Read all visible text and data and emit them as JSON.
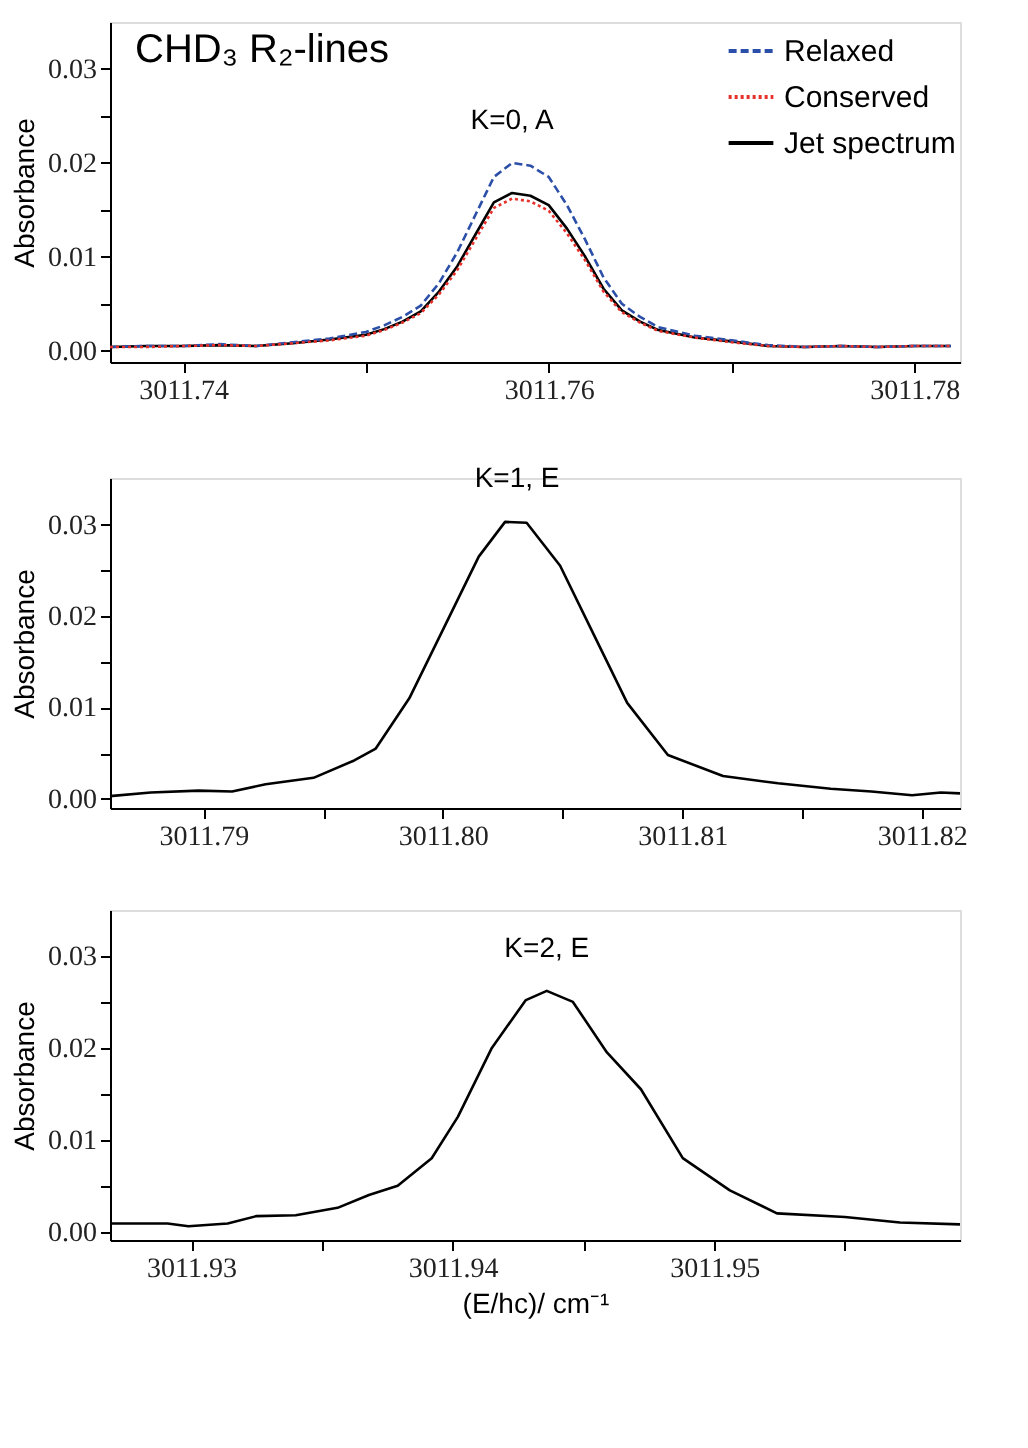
{
  "chart_data": [
    {
      "type": "line",
      "title": "CHD₃  R₂-lines",
      "ylabel": "Absorbance",
      "legend": "top right",
      "grid": false,
      "marker": "none",
      "annotations": [
        {
          "text": "K=0, A",
          "x": 3011.758,
          "y": 0.02
        }
      ],
      "xlim": [
        3011.736,
        3011.7825
      ],
      "ylim": [
        -0.0012,
        0.035
      ],
      "xticks": [
        {
          "value": 3011.74,
          "label": "3011.74"
        },
        {
          "value": 3011.75,
          "label": null
        },
        {
          "value": 3011.76,
          "label": "3011.76"
        },
        {
          "value": 3011.77,
          "label": null
        },
        {
          "value": 3011.78,
          "label": "3011.78"
        }
      ],
      "yticks": [
        {
          "value": 0,
          "label": "0.00"
        },
        {
          "value": 0.005,
          "label": null
        },
        {
          "value": 0.01,
          "label": "0.01"
        },
        {
          "value": 0.015,
          "label": null
        },
        {
          "value": 0.02,
          "label": "0.02"
        },
        {
          "value": 0.025,
          "label": null
        },
        {
          "value": 0.03,
          "label": "0.03"
        }
      ],
      "x": [
        3011.736,
        3011.738,
        3011.74,
        3011.742,
        3011.744,
        3011.746,
        3011.748,
        3011.75,
        3011.751,
        3011.752,
        3011.753,
        3011.754,
        3011.755,
        3011.756,
        3011.757,
        3011.758,
        3011.759,
        3011.76,
        3011.761,
        3011.762,
        3011.763,
        3011.764,
        3011.765,
        3011.766,
        3011.768,
        3011.77,
        3011.772,
        3011.774,
        3011.776,
        3011.778,
        3011.78,
        3011.782
      ],
      "series": [
        {
          "name": "Relaxed",
          "color": "#2b4fa8",
          "line_style": "dashed",
          "values": [
            0.0004,
            0.0005,
            0.0005,
            0.0007,
            0.0005,
            0.0009,
            0.0013,
            0.002,
            0.0027,
            0.0036,
            0.0048,
            0.0072,
            0.0105,
            0.0145,
            0.0185,
            0.02,
            0.0197,
            0.0185,
            0.0155,
            0.0118,
            0.0078,
            0.005,
            0.0036,
            0.0025,
            0.0016,
            0.0011,
            0.0006,
            0.0004,
            0.0005,
            0.0004,
            0.0005,
            0.0005
          ]
        },
        {
          "name": "Conserved",
          "color": "#e8302a",
          "line_style": "dotted",
          "values": [
            0.0004,
            0.0004,
            0.0005,
            0.0006,
            0.0005,
            0.0008,
            0.0011,
            0.0016,
            0.0022,
            0.003,
            0.004,
            0.006,
            0.0086,
            0.0119,
            0.0152,
            0.0162,
            0.0159,
            0.0149,
            0.0125,
            0.0096,
            0.0063,
            0.0041,
            0.003,
            0.0021,
            0.0014,
            0.0009,
            0.0005,
            0.0004,
            0.0005,
            0.0004,
            0.0005,
            0.0005
          ]
        },
        {
          "name": "Jet spectrum",
          "color": "#000000",
          "line_style": "solid",
          "values": [
            0.0004,
            0.0005,
            0.0005,
            0.0006,
            0.0005,
            0.0008,
            0.0012,
            0.0017,
            0.0023,
            0.0031,
            0.0042,
            0.0063,
            0.009,
            0.0124,
            0.0158,
            0.0168,
            0.0165,
            0.0155,
            0.013,
            0.01,
            0.0066,
            0.0043,
            0.0031,
            0.0022,
            0.0014,
            0.001,
            0.0005,
            0.0004,
            0.0005,
            0.0004,
            0.0005,
            0.0005
          ]
        }
      ]
    },
    {
      "type": "line",
      "ylabel": "Absorbance",
      "grid": false,
      "marker": "none",
      "annotations": [
        {
          "text": "K=1, E",
          "x": 3011.8031,
          "y": 0.0304
        }
      ],
      "xlim": [
        3011.7861,
        3011.8216
      ],
      "ylim": [
        -0.001,
        0.0351
      ],
      "xticks": [
        {
          "value": 3011.79,
          "label": "3011.79"
        },
        {
          "value": 3011.795,
          "label": null
        },
        {
          "value": 3011.8,
          "label": "3011.80"
        },
        {
          "value": 3011.805,
          "label": null
        },
        {
          "value": 3011.81,
          "label": "3011.81"
        },
        {
          "value": 3011.815,
          "label": null
        },
        {
          "value": 3011.82,
          "label": "3011.82"
        }
      ],
      "yticks": [
        {
          "value": 0,
          "label": "0.00"
        },
        {
          "value": 0.005,
          "label": null
        },
        {
          "value": 0.01,
          "label": "0.01"
        },
        {
          "value": 0.015,
          "label": null
        },
        {
          "value": 0.02,
          "label": "0.02"
        },
        {
          "value": 0.025,
          "label": null
        },
        {
          "value": 0.03,
          "label": "0.03"
        }
      ],
      "x": [
        3011.7861,
        3011.7878,
        3011.7898,
        3011.7912,
        3011.7926,
        3011.7946,
        3011.7963,
        3011.7972,
        3011.7986,
        3011.8001,
        3011.8015,
        3011.8026,
        3011.8035,
        3011.8049,
        3011.8063,
        3011.8077,
        3011.8094,
        3011.8117,
        3011.814,
        3011.8162,
        3011.8179,
        3011.8196,
        3011.8208,
        3011.8216
      ],
      "series": [
        {
          "color": "#000000",
          "line_style": "solid",
          "values": [
            0.0003,
            0.0007,
            0.0009,
            0.0008,
            0.0016,
            0.0023,
            0.0042,
            0.0055,
            0.011,
            0.019,
            0.0265,
            0.0303,
            0.0302,
            0.0255,
            0.018,
            0.0105,
            0.0048,
            0.0025,
            0.0017,
            0.0011,
            0.0008,
            0.0004,
            0.0007,
            0.0006
          ]
        }
      ]
    },
    {
      "type": "line",
      "ylabel": "Absorbance",
      "xlabel": "(E/hc)/ cm⁻¹",
      "grid": false,
      "marker": "none",
      "annotations": [
        {
          "text": "K=2, E",
          "x": 3011.9436,
          "y": 0.0262
        }
      ],
      "xlim": [
        3011.9269,
        3011.9594
      ],
      "ylim": [
        -0.0009,
        0.035
      ],
      "xticks": [
        {
          "value": 3011.93,
          "label": "3011.93"
        },
        {
          "value": 3011.935,
          "label": null
        },
        {
          "value": 3011.94,
          "label": "3011.94"
        },
        {
          "value": 3011.945,
          "label": null
        },
        {
          "value": 3011.95,
          "label": "3011.95"
        },
        {
          "value": 3011.955,
          "label": null
        }
      ],
      "yticks": [
        {
          "value": 0,
          "label": "0.00"
        },
        {
          "value": 0.005,
          "label": null
        },
        {
          "value": 0.01,
          "label": "0.01"
        },
        {
          "value": 0.015,
          "label": null
        },
        {
          "value": 0.02,
          "label": "0.02"
        },
        {
          "value": 0.025,
          "label": null
        },
        {
          "value": 0.03,
          "label": "0.03"
        }
      ],
      "x": [
        3011.9269,
        3011.9291,
        3011.9299,
        3011.9314,
        3011.9325,
        3011.934,
        3011.9356,
        3011.9368,
        3011.9379,
        3011.9392,
        3011.9402,
        3011.9415,
        3011.9428,
        3011.9436,
        3011.9446,
        3011.9459,
        3011.9472,
        3011.9488,
        3011.9506,
        3011.9524,
        3011.955,
        3011.9571,
        3011.9594
      ],
      "series": [
        {
          "color": "#000000",
          "line_style": "solid",
          "values": [
            0.0009,
            0.0009,
            0.0006,
            0.0009,
            0.0017,
            0.0018,
            0.0026,
            0.004,
            0.005,
            0.008,
            0.0125,
            0.02,
            0.0252,
            0.0262,
            0.025,
            0.0195,
            0.0155,
            0.008,
            0.0045,
            0.002,
            0.0016,
            0.001,
            0.0008
          ]
        }
      ]
    }
  ]
}
